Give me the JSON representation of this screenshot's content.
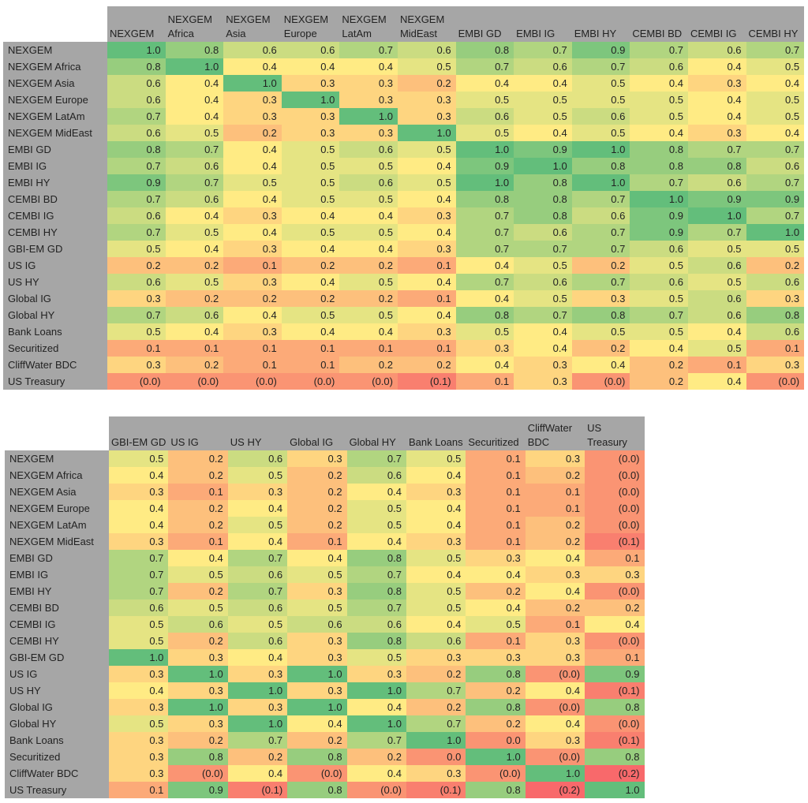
{
  "chart_data": [
    {
      "type": "heatmap",
      "title": "",
      "rows": [
        "NEXGEM",
        "NEXGEM Africa",
        "NEXGEM Asia",
        "NEXGEM Europe",
        "NEXGEM LatAm",
        "NEXGEM MidEast",
        "EMBI GD",
        "EMBI IG",
        "EMBI HY",
        "CEMBI BD",
        "CEMBI IG",
        "CEMBI HY",
        "GBI-EM GD",
        "US IG",
        "US HY",
        "Global IG",
        "Global HY",
        "Bank Loans",
        "Securitized",
        "CliffWater BDC",
        "US Treasury"
      ],
      "columns": [
        "NEXGEM",
        "NEXGEM Africa",
        "NEXGEM Asia",
        "NEXGEM Europe",
        "NEXGEM LatAm",
        "NEXGEM MidEast",
        "EMBI GD",
        "EMBI IG",
        "EMBI HY",
        "CEMBI BD",
        "CEMBI IG",
        "CEMBI HY"
      ],
      "values": [
        [
          1.0,
          0.8,
          0.6,
          0.6,
          0.7,
          0.6,
          0.8,
          0.7,
          0.9,
          0.7,
          0.6,
          0.7
        ],
        [
          0.8,
          1.0,
          0.4,
          0.4,
          0.4,
          0.5,
          0.7,
          0.6,
          0.7,
          0.6,
          0.4,
          0.5
        ],
        [
          0.6,
          0.4,
          1.0,
          0.3,
          0.3,
          0.2,
          0.4,
          0.4,
          0.5,
          0.4,
          0.3,
          0.4
        ],
        [
          0.6,
          0.4,
          0.3,
          1.0,
          0.3,
          0.3,
          0.5,
          0.5,
          0.5,
          0.5,
          0.4,
          0.5
        ],
        [
          0.7,
          0.4,
          0.3,
          0.3,
          1.0,
          0.3,
          0.6,
          0.5,
          0.6,
          0.5,
          0.4,
          0.5
        ],
        [
          0.6,
          0.5,
          0.2,
          0.3,
          0.3,
          1.0,
          0.5,
          0.4,
          0.5,
          0.4,
          0.3,
          0.4
        ],
        [
          0.8,
          0.7,
          0.4,
          0.5,
          0.6,
          0.5,
          1.0,
          0.9,
          1.0,
          0.8,
          0.7,
          0.7
        ],
        [
          0.7,
          0.6,
          0.4,
          0.5,
          0.5,
          0.4,
          0.9,
          1.0,
          0.8,
          0.8,
          0.8,
          0.6
        ],
        [
          0.9,
          0.7,
          0.5,
          0.5,
          0.6,
          0.5,
          1.0,
          0.8,
          1.0,
          0.7,
          0.6,
          0.7
        ],
        [
          0.7,
          0.6,
          0.4,
          0.5,
          0.5,
          0.4,
          0.8,
          0.8,
          0.7,
          1.0,
          0.9,
          0.9
        ],
        [
          0.6,
          0.4,
          0.3,
          0.4,
          0.4,
          0.3,
          0.7,
          0.8,
          0.6,
          0.9,
          1.0,
          0.7
        ],
        [
          0.7,
          0.5,
          0.4,
          0.5,
          0.5,
          0.4,
          0.7,
          0.6,
          0.7,
          0.9,
          0.7,
          1.0
        ],
        [
          0.5,
          0.4,
          0.3,
          0.4,
          0.4,
          0.3,
          0.7,
          0.7,
          0.7,
          0.6,
          0.5,
          0.5
        ],
        [
          0.2,
          0.2,
          0.1,
          0.2,
          0.2,
          0.1,
          0.4,
          0.5,
          0.2,
          0.5,
          0.6,
          0.2
        ],
        [
          0.6,
          0.5,
          0.3,
          0.4,
          0.5,
          0.4,
          0.7,
          0.6,
          0.7,
          0.6,
          0.5,
          0.6
        ],
        [
          0.3,
          0.2,
          0.2,
          0.2,
          0.2,
          0.1,
          0.4,
          0.5,
          0.3,
          0.5,
          0.6,
          0.3
        ],
        [
          0.7,
          0.6,
          0.4,
          0.5,
          0.5,
          0.4,
          0.8,
          0.7,
          0.8,
          0.7,
          0.6,
          0.8
        ],
        [
          0.5,
          0.4,
          0.3,
          0.4,
          0.4,
          0.3,
          0.5,
          0.4,
          0.5,
          0.5,
          0.4,
          0.6
        ],
        [
          0.1,
          0.1,
          0.1,
          0.1,
          0.1,
          0.1,
          0.3,
          0.4,
          0.2,
          0.4,
          0.5,
          0.1
        ],
        [
          0.3,
          0.2,
          0.1,
          0.1,
          0.2,
          0.2,
          0.4,
          0.3,
          0.4,
          0.2,
          0.1,
          0.3
        ],
        [
          -0.0,
          -0.0,
          -0.0,
          -0.0,
          -0.0,
          -0.1,
          0.1,
          0.3,
          -0.0,
          0.2,
          0.4,
          -0.0
        ]
      ]
    },
    {
      "type": "heatmap",
      "title": "",
      "rows": [
        "NEXGEM",
        "NEXGEM Africa",
        "NEXGEM Asia",
        "NEXGEM Europe",
        "NEXGEM LatAm",
        "NEXGEM MidEast",
        "EMBI GD",
        "EMBI IG",
        "EMBI HY",
        "CEMBI BD",
        "CEMBI IG",
        "CEMBI HY",
        "GBI-EM GD",
        "US IG",
        "US HY",
        "Global IG",
        "Global HY",
        "Bank Loans",
        "Securitized",
        "CliffWater BDC",
        "US Treasury"
      ],
      "columns": [
        "GBI-EM GD",
        "US IG",
        "US HY",
        "Global IG",
        "Global HY",
        "Bank Loans",
        "Securitized",
        "CliffWater BDC",
        "US Treasury"
      ],
      "values": [
        [
          0.5,
          0.2,
          0.6,
          0.3,
          0.7,
          0.5,
          0.1,
          0.3,
          -0.0
        ],
        [
          0.4,
          0.2,
          0.5,
          0.2,
          0.6,
          0.4,
          0.1,
          0.2,
          -0.0
        ],
        [
          0.3,
          0.1,
          0.3,
          0.2,
          0.4,
          0.3,
          0.1,
          0.1,
          -0.0
        ],
        [
          0.4,
          0.2,
          0.4,
          0.2,
          0.5,
          0.4,
          0.1,
          0.1,
          -0.0
        ],
        [
          0.4,
          0.2,
          0.5,
          0.2,
          0.5,
          0.4,
          0.1,
          0.2,
          -0.0
        ],
        [
          0.3,
          0.1,
          0.4,
          0.1,
          0.4,
          0.3,
          0.1,
          0.2,
          -0.1
        ],
        [
          0.7,
          0.4,
          0.7,
          0.4,
          0.8,
          0.5,
          0.3,
          0.4,
          0.1
        ],
        [
          0.7,
          0.5,
          0.6,
          0.5,
          0.7,
          0.4,
          0.4,
          0.3,
          0.3
        ],
        [
          0.7,
          0.2,
          0.7,
          0.3,
          0.8,
          0.5,
          0.2,
          0.4,
          -0.0
        ],
        [
          0.6,
          0.5,
          0.6,
          0.5,
          0.7,
          0.5,
          0.4,
          0.2,
          0.2
        ],
        [
          0.5,
          0.6,
          0.5,
          0.6,
          0.6,
          0.4,
          0.5,
          0.1,
          0.4
        ],
        [
          0.5,
          0.2,
          0.6,
          0.3,
          0.8,
          0.6,
          0.1,
          0.3,
          -0.0
        ],
        [
          1.0,
          0.3,
          0.4,
          0.3,
          0.5,
          0.3,
          0.3,
          0.3,
          0.1
        ],
        [
          0.3,
          1.0,
          0.3,
          1.0,
          0.3,
          0.2,
          0.8,
          -0.0,
          0.9
        ],
        [
          0.4,
          0.3,
          1.0,
          0.3,
          1.0,
          0.7,
          0.2,
          0.4,
          -0.1
        ],
        [
          0.3,
          1.0,
          0.3,
          1.0,
          0.4,
          0.2,
          0.8,
          -0.0,
          0.8
        ],
        [
          0.5,
          0.3,
          1.0,
          0.4,
          1.0,
          0.7,
          0.2,
          0.4,
          -0.0
        ],
        [
          0.3,
          0.2,
          0.7,
          0.2,
          0.7,
          1.0,
          0.0,
          0.3,
          -0.1
        ],
        [
          0.3,
          0.8,
          0.2,
          0.8,
          0.2,
          0.0,
          1.0,
          -0.0,
          0.8
        ],
        [
          0.3,
          -0.0,
          0.4,
          -0.0,
          0.4,
          0.3,
          -0.0,
          1.0,
          -0.2
        ],
        [
          0.1,
          0.9,
          -0.1,
          0.8,
          -0.0,
          -0.1,
          0.8,
          -0.2,
          1.0
        ]
      ]
    }
  ]
}
